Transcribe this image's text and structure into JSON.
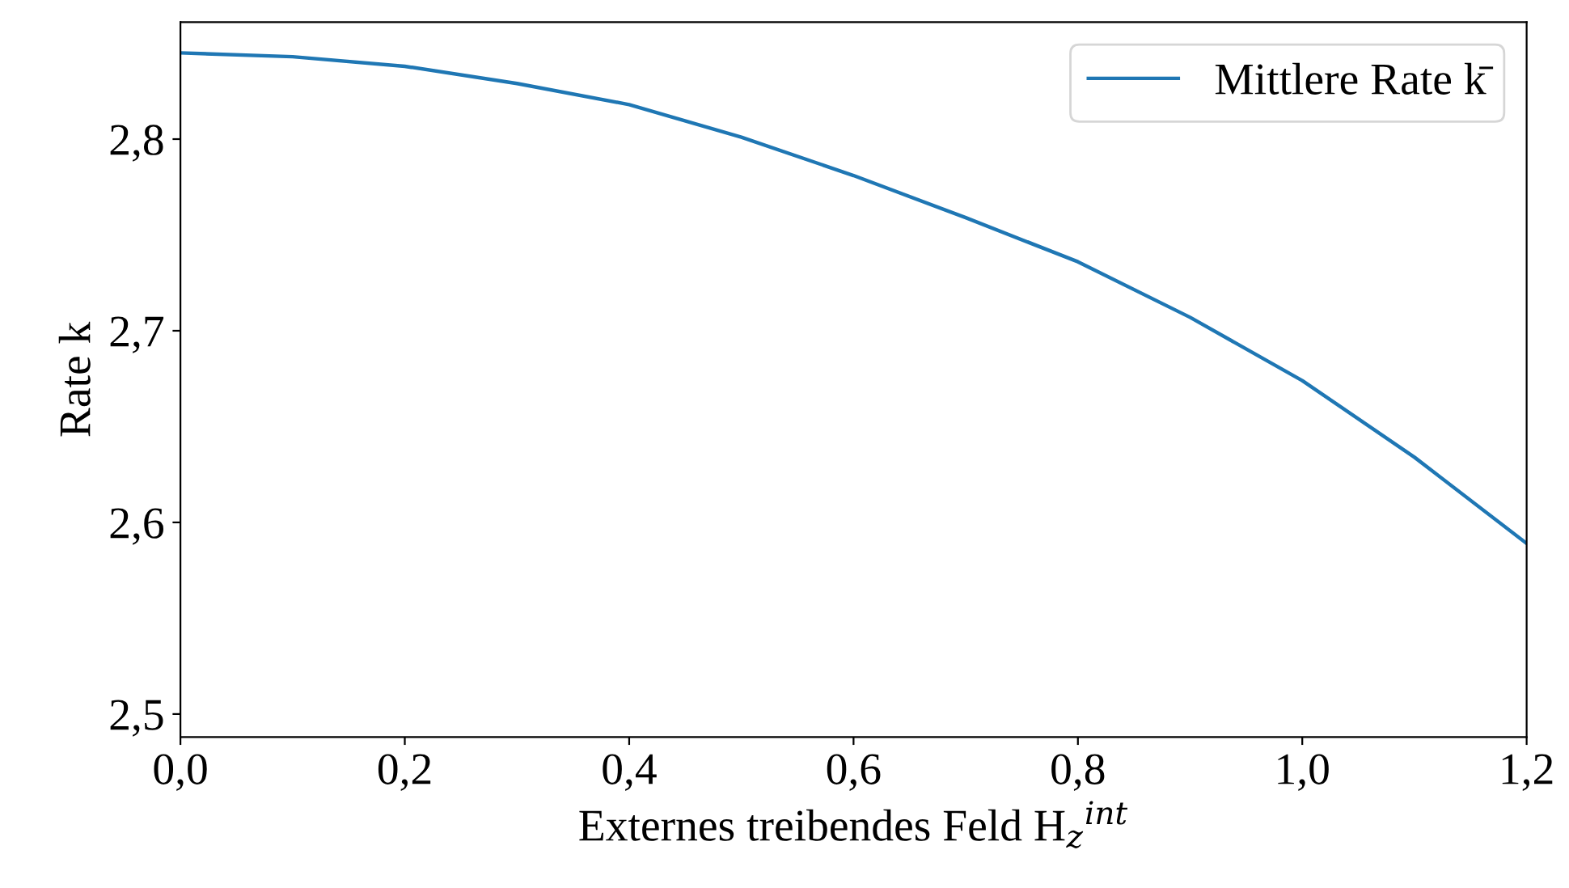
{
  "chart_data": {
    "type": "line",
    "xlabel": "Externes treibendes Feld H$_{z}$$^{int}$",
    "ylabel": "Rate k",
    "x": [
      0,
      0.1,
      0.2,
      0.3,
      0.4,
      0.5,
      0.6,
      0.7,
      0.8,
      0.9,
      1.0,
      1.1,
      1.2
    ],
    "series": [
      {
        "name": "Mittlere Rate k̄",
        "color": "#1f77b4",
        "values": [
          2.845,
          2.843,
          2.838,
          2.829,
          2.818,
          2.801,
          2.781,
          2.759,
          2.736,
          2.707,
          2.674,
          2.634,
          2.589
        ]
      }
    ],
    "xlim": [
      0,
      1.2
    ],
    "xticks": [
      {
        "value": 0,
        "label": "0,0"
      },
      {
        "value": 0.2,
        "label": "0,2"
      },
      {
        "value": 0.4,
        "label": "0,4"
      },
      {
        "value": 0.6,
        "label": "0,6"
      },
      {
        "value": 0.8,
        "label": "0,8"
      },
      {
        "value": 1.0,
        "label": "1,0"
      },
      {
        "value": 1.2,
        "label": "1,2"
      }
    ],
    "ylim": [
      2.488,
      2.861
    ],
    "yticks": [
      {
        "value": 2.5,
        "label": "2,5"
      },
      {
        "value": 2.6,
        "label": "2,6"
      },
      {
        "value": 2.7,
        "label": "2,7"
      },
      {
        "value": 2.8,
        "label": "2,8"
      }
    ],
    "legend": "top right",
    "grid": false,
    "marker": "none",
    "line_style": "solid"
  }
}
